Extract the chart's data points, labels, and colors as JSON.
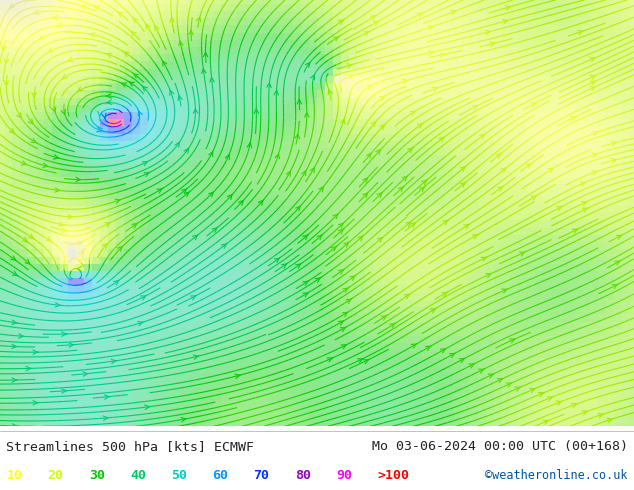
{
  "title_left": "Streamlines 500 hPa [kts] ECMWF",
  "title_right": "Mo 03-06-2024 00:00 UTC (00+168)",
  "credit": "©weatheronline.co.uk",
  "legend_values": [
    "10",
    "20",
    "30",
    "40",
    "50",
    "60",
    "70",
    "80",
    "90",
    ">100"
  ],
  "legend_colors": [
    "#ffff00",
    "#ccff00",
    "#00cc00",
    "#00cc66",
    "#00cccc",
    "#0099ff",
    "#0033ff",
    "#9900cc",
    "#ff00ff",
    "#ff0000"
  ],
  "bg_color": "#ffffff",
  "figsize": [
    6.34,
    4.9
  ],
  "dpi": 100,
  "cmap_stops": [
    [
      0.0,
      "#d0d0d0"
    ],
    [
      0.1,
      "#ffff44"
    ],
    [
      0.2,
      "#aaee00"
    ],
    [
      0.3,
      "#00cc00"
    ],
    [
      0.4,
      "#00cc88"
    ],
    [
      0.5,
      "#00cccc"
    ],
    [
      0.6,
      "#0088ff"
    ],
    [
      0.7,
      "#0033ff"
    ],
    [
      0.8,
      "#8800cc"
    ],
    [
      0.9,
      "#ee00ee"
    ],
    [
      1.0,
      "#ff2200"
    ]
  ]
}
